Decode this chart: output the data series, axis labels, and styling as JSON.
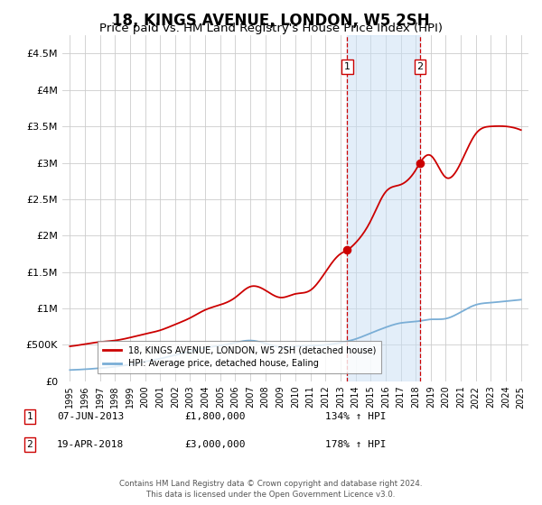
{
  "title": "18, KINGS AVENUE, LONDON, W5 2SH",
  "subtitle": "Price paid vs. HM Land Registry's House Price Index (HPI)",
  "title_fontsize": 12,
  "subtitle_fontsize": 9.5,
  "red_line_label": "18, KINGS AVENUE, LONDON, W5 2SH (detached house)",
  "blue_line_label": "HPI: Average price, detached house, Ealing",
  "sale1_price": 1800000,
  "sale1_year": 2013.44,
  "sale2_price": 3000000,
  "sale2_year": 2018.29,
  "footer": "Contains HM Land Registry data © Crown copyright and database right 2024.\nThis data is licensed under the Open Government Licence v3.0.",
  "ylim": [
    0,
    4750000
  ],
  "xlim": [
    1994.5,
    2025.5
  ],
  "red_color": "#cc0000",
  "blue_color": "#7aaed6",
  "shade_color": "#c8dff5",
  "vline_color": "#cc0000",
  "background_color": "#ffffff",
  "grid_color": "#cccccc",
  "red_years": [
    1995,
    1996,
    1997,
    1998,
    1999,
    2000,
    2001,
    2002,
    2003,
    2004,
    2005,
    2006,
    2007,
    2008,
    2009,
    2010,
    2011,
    2012,
    2013,
    2013.44,
    2014,
    2015,
    2016,
    2017,
    2018,
    2018.29,
    2019,
    2020,
    2021,
    2022,
    2023,
    2024,
    2025
  ],
  "red_vals": [
    480000,
    510000,
    540000,
    560000,
    600000,
    650000,
    700000,
    780000,
    870000,
    980000,
    1050000,
    1150000,
    1300000,
    1250000,
    1150000,
    1200000,
    1250000,
    1500000,
    1750000,
    1800000,
    1900000,
    2200000,
    2600000,
    2700000,
    2900000,
    3000000,
    3100000,
    2800000,
    3000000,
    3400000,
    3500000,
    3500000,
    3450000
  ],
  "blue_years": [
    1995,
    1996,
    1997,
    1998,
    1999,
    2000,
    2001,
    2002,
    2003,
    2004,
    2005,
    2006,
    2007,
    2008,
    2009,
    2010,
    2011,
    2012,
    2013,
    2014,
    2015,
    2016,
    2017,
    2018,
    2019,
    2020,
    2021,
    2022,
    2023,
    2024,
    2025
  ],
  "blue_vals": [
    155000,
    165000,
    180000,
    200000,
    230000,
    270000,
    310000,
    360000,
    410000,
    460000,
    490000,
    530000,
    560000,
    520000,
    470000,
    480000,
    490000,
    500000,
    530000,
    580000,
    660000,
    740000,
    800000,
    820000,
    850000,
    860000,
    950000,
    1050000,
    1080000,
    1100000,
    1120000
  ]
}
